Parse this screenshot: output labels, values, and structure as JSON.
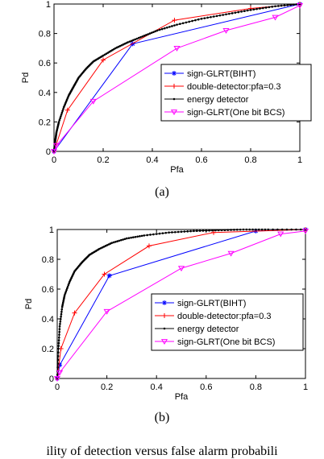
{
  "captions": [
    "(a)",
    "(b)"
  ],
  "bottom_text": "ility of detection versus false alarm probabili",
  "chart_data": [
    {
      "type": "line",
      "xlabel": "Pfa",
      "ylabel": "Pd",
      "xlim": [
        0,
        1
      ],
      "ylim": [
        0,
        1
      ],
      "xticks": [
        "0",
        "0.2",
        "0.4",
        "0.6",
        "0.8",
        "1"
      ],
      "yticks": [
        "0",
        "0.2",
        "0.4",
        "0.6",
        "0.8",
        "1"
      ],
      "grid": false,
      "legend": "right",
      "series": [
        {
          "name": "sign-GLRT(BIHT)",
          "color": "#0000ff",
          "marker": "asterisk",
          "x": [
            0,
            0.32,
            1
          ],
          "y": [
            0,
            0.73,
            1
          ]
        },
        {
          "name": "double-detector:pfa=0.3",
          "color": "#ff0000",
          "marker": "plus",
          "x": [
            0,
            0.055,
            0.2,
            0.49,
            0.8,
            1
          ],
          "y": [
            0,
            0.28,
            0.62,
            0.89,
            0.97,
            1
          ]
        },
        {
          "name": "energy detector",
          "color": "#000000",
          "marker": "dot",
          "x": [
            0,
            0.005,
            0.01,
            0.02,
            0.04,
            0.06,
            0.08,
            0.1,
            0.13,
            0.16,
            0.2,
            0.25,
            0.3,
            0.36,
            0.42,
            0.5,
            0.6,
            0.7,
            0.8,
            0.9,
            1
          ],
          "y": [
            0,
            0.07,
            0.13,
            0.2,
            0.3,
            0.38,
            0.44,
            0.5,
            0.56,
            0.61,
            0.65,
            0.7,
            0.74,
            0.78,
            0.82,
            0.86,
            0.9,
            0.93,
            0.96,
            0.985,
            1
          ]
        },
        {
          "name": "sign-GLRT(One bit BCS)",
          "color": "#ff00ff",
          "marker": "triangle-down",
          "x": [
            0,
            0.01,
            0.16,
            0.5,
            0.7,
            0.9,
            1
          ],
          "y": [
            0,
            0.04,
            0.34,
            0.7,
            0.82,
            0.91,
            0.99
          ]
        }
      ]
    },
    {
      "type": "line",
      "xlabel": "Pfa",
      "ylabel": "Pd",
      "xlim": [
        0,
        1
      ],
      "ylim": [
        0,
        1
      ],
      "xticks": [
        "0",
        "0.2",
        "0.4",
        "0.6",
        "0.8",
        "1"
      ],
      "yticks": [
        "0",
        "0.2",
        "0.4",
        "0.6",
        "0.8",
        "1"
      ],
      "grid": false,
      "legend": "right",
      "series": [
        {
          "name": "sign-GLRT(BIHT)",
          "color": "#0000ff",
          "marker": "asterisk",
          "x": [
            0,
            0.01,
            0.21,
            0.8,
            1
          ],
          "y": [
            0,
            0.09,
            0.69,
            0.99,
            1
          ]
        },
        {
          "name": "double-detector:pfa=0.3",
          "color": "#ff0000",
          "marker": "plus",
          "x": [
            0,
            0.015,
            0.07,
            0.19,
            0.37,
            0.63,
            1
          ],
          "y": [
            0,
            0.2,
            0.44,
            0.7,
            0.89,
            0.98,
            1
          ]
        },
        {
          "name": "energy detector",
          "color": "#000000",
          "marker": "dot",
          "x": [
            0,
            0.005,
            0.01,
            0.02,
            0.03,
            0.05,
            0.07,
            0.1,
            0.13,
            0.17,
            0.22,
            0.28,
            0.35,
            0.45,
            0.55,
            0.65,
            0.75,
            0.85,
            1
          ],
          "y": [
            0,
            0.2,
            0.35,
            0.48,
            0.56,
            0.65,
            0.72,
            0.78,
            0.83,
            0.87,
            0.91,
            0.94,
            0.96,
            0.98,
            0.99,
            0.995,
            1,
            1,
            1
          ]
        },
        {
          "name": "sign-GLRT(One bit BCS)",
          "color": "#ff00ff",
          "marker": "triangle-down",
          "x": [
            0,
            0.01,
            0.2,
            0.5,
            0.7,
            0.9,
            1
          ],
          "y": [
            0,
            0.04,
            0.45,
            0.74,
            0.84,
            0.97,
            0.99
          ]
        }
      ]
    }
  ]
}
